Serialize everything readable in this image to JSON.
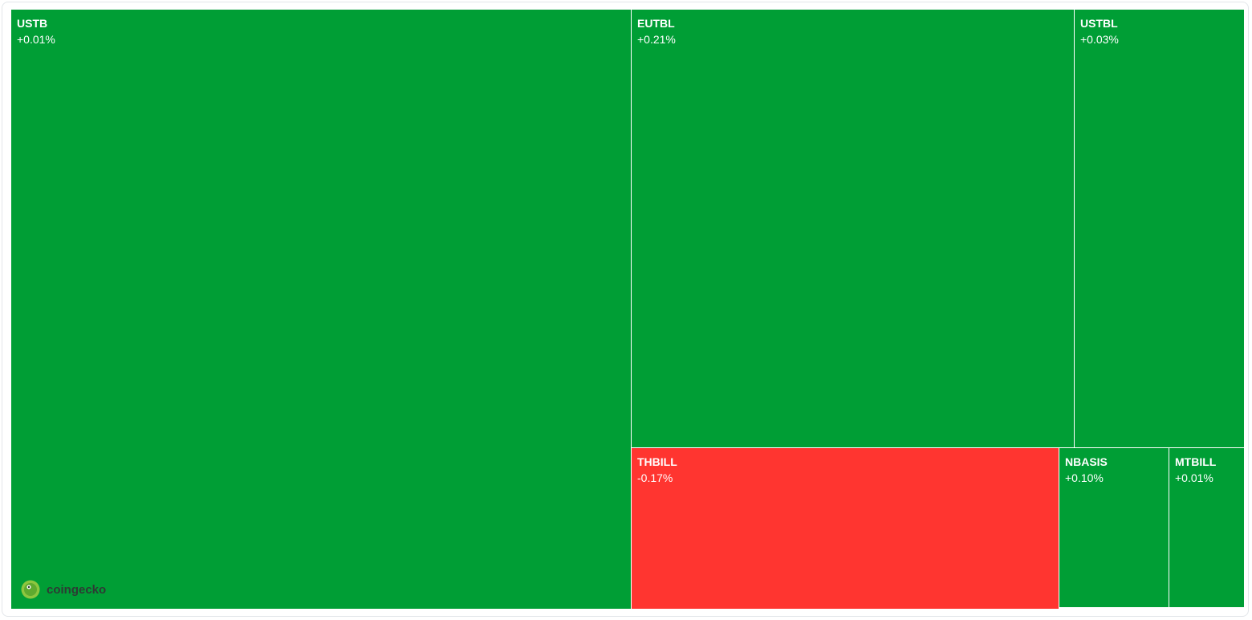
{
  "tiles": [
    {
      "symbol": "USTB",
      "change": "+0.01%",
      "color": "#009e35"
    },
    {
      "symbol": "EUTBL",
      "change": "+0.21%",
      "color": "#009e35"
    },
    {
      "symbol": "USTBL",
      "change": "+0.03%",
      "color": "#009e35"
    },
    {
      "symbol": "THBILL",
      "change": "-0.17%",
      "color": "#ff3530"
    },
    {
      "symbol": "NBASIS",
      "change": "+0.10%",
      "color": "#009e35"
    },
    {
      "symbol": "MTBILL",
      "change": "+0.01%",
      "color": "#009e35"
    }
  ],
  "logo": "coingecko"
}
